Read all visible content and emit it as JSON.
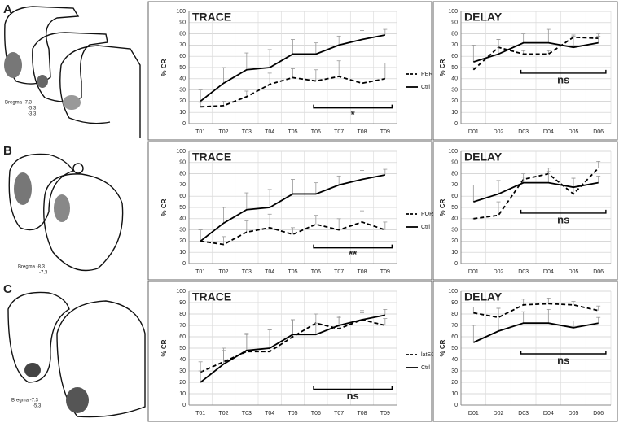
{
  "panels": [
    {
      "label": "A",
      "bregma": [
        "Bregma -7.3",
        "-5.3",
        "-3.3"
      ]
    },
    {
      "label": "B",
      "bregma": [
        "Bregma -8.3",
        "-7.3"
      ]
    },
    {
      "label": "C",
      "bregma": [
        "Bregma -7.3",
        "-5.3"
      ]
    }
  ],
  "chart_data": [
    {
      "type": "line",
      "title": "TRACE",
      "y_label": "% CR",
      "annotation": "*",
      "legend": "right",
      "grid": true,
      "categories": [
        "T01",
        "T02",
        "T03",
        "T04",
        "T05",
        "T06",
        "T07",
        "T08",
        "T09"
      ],
      "ylim": [
        0,
        100
      ],
      "yticks": [
        0,
        10,
        20,
        30,
        40,
        50,
        60,
        70,
        80,
        90,
        100
      ],
      "series": [
        {
          "name": "PER",
          "color": "#000000",
          "line_style": "dashed",
          "values": [
            15,
            16,
            24,
            35,
            41,
            38,
            42,
            36,
            40
          ],
          "errors": [
            4,
            4,
            5,
            10,
            8,
            10,
            14,
            10,
            14
          ]
        },
        {
          "name": "Ctrl",
          "color": "#000000",
          "line_style": "solid",
          "values": [
            20,
            36,
            48,
            50,
            62,
            62,
            70,
            75,
            79
          ],
          "errors": [
            10,
            14,
            15,
            16,
            13,
            10,
            8,
            8,
            5
          ]
        }
      ]
    },
    {
      "type": "line",
      "title": "DELAY",
      "y_label": "% CR",
      "annotation": "ns",
      "grid": true,
      "categories": [
        "D01",
        "D02",
        "D03",
        "D04",
        "D05",
        "D06"
      ],
      "ylim": [
        0,
        100
      ],
      "yticks": [
        0,
        10,
        20,
        30,
        40,
        50,
        60,
        70,
        80,
        90,
        100
      ],
      "series": [
        {
          "color": "#000000",
          "line_style": "dashed",
          "values": [
            48,
            68,
            62,
            62,
            77,
            76
          ],
          "errors": [
            2,
            7,
            3,
            3,
            2,
            4
          ]
        },
        {
          "color": "#000000",
          "line_style": "solid",
          "values": [
            55,
            62,
            72,
            72,
            68,
            72
          ],
          "errors": [
            15,
            13,
            8,
            12,
            10,
            6
          ]
        }
      ]
    },
    {
      "type": "line",
      "title": "TRACE",
      "y_label": "% CR",
      "annotation": "**",
      "legend": "right",
      "grid": true,
      "categories": [
        "T01",
        "T02",
        "T03",
        "T04",
        "T05",
        "T06",
        "T07",
        "T08",
        "T09"
      ],
      "ylim": [
        0,
        100
      ],
      "yticks": [
        0,
        10,
        20,
        30,
        40,
        50,
        60,
        70,
        80,
        90,
        100
      ],
      "series": [
        {
          "name": "POR",
          "color": "#000000",
          "line_style": "dashed",
          "values": [
            20,
            17,
            28,
            32,
            26,
            35,
            30,
            37,
            30
          ],
          "errors": [
            10,
            7,
            10,
            12,
            6,
            8,
            10,
            10,
            7
          ]
        },
        {
          "name": "Ctrl",
          "color": "#000000",
          "line_style": "solid",
          "values": [
            20,
            36,
            48,
            50,
            62,
            62,
            70,
            75,
            79
          ],
          "errors": [
            10,
            14,
            15,
            16,
            13,
            10,
            8,
            8,
            5
          ]
        }
      ]
    },
    {
      "type": "line",
      "title": "DELAY",
      "y_label": "% CR",
      "annotation": "ns",
      "grid": true,
      "categories": [
        "D01",
        "D02",
        "D03",
        "D04",
        "D05",
        "D06"
      ],
      "ylim": [
        0,
        100
      ],
      "yticks": [
        0,
        10,
        20,
        30,
        40,
        50,
        60,
        70,
        80,
        90,
        100
      ],
      "series": [
        {
          "color": "#000000",
          "line_style": "dashed",
          "values": [
            40,
            43,
            75,
            80,
            62,
            85
          ],
          "errors": [
            0,
            12,
            5,
            5,
            14,
            6
          ]
        },
        {
          "color": "#000000",
          "line_style": "solid",
          "values": [
            55,
            62,
            72,
            72,
            68,
            72
          ],
          "errors": [
            15,
            12,
            5,
            10,
            8,
            6
          ]
        }
      ]
    },
    {
      "type": "line",
      "title": "TRACE",
      "y_label": "% CR",
      "annotation": "ns",
      "legend": "right",
      "grid": true,
      "categories": [
        "T01",
        "T02",
        "T03",
        "T04",
        "T05",
        "T06",
        "T07",
        "T08",
        "T09"
      ],
      "ylim": [
        0,
        100
      ],
      "yticks": [
        0,
        10,
        20,
        30,
        40,
        50,
        60,
        70,
        80,
        90,
        100
      ],
      "series": [
        {
          "name": "latEC",
          "color": "#000000",
          "line_style": "dashed",
          "values": [
            29,
            38,
            47,
            47,
            60,
            72,
            67,
            75,
            70
          ],
          "errors": [
            9,
            10,
            15,
            19,
            15,
            8,
            10,
            6,
            6
          ]
        },
        {
          "name": "Ctrl",
          "color": "#000000",
          "line_style": "solid",
          "values": [
            20,
            36,
            48,
            50,
            62,
            62,
            70,
            75,
            79
          ],
          "errors": [
            10,
            14,
            15,
            16,
            13,
            10,
            8,
            8,
            5
          ]
        }
      ]
    },
    {
      "type": "line",
      "title": "DELAY",
      "y_label": "% CR",
      "annotation": "ns",
      "grid": true,
      "categories": [
        "D01",
        "D02",
        "D03",
        "D04",
        "D05",
        "D06"
      ],
      "ylim": [
        0,
        100
      ],
      "yticks": [
        0,
        10,
        20,
        30,
        40,
        50,
        60,
        70,
        80,
        90,
        100
      ],
      "series": [
        {
          "color": "#000000",
          "line_style": "dashed",
          "values": [
            81,
            77,
            88,
            89,
            88,
            83
          ],
          "errors": [
            5,
            8,
            5,
            5,
            3,
            4
          ]
        },
        {
          "color": "#000000",
          "line_style": "solid",
          "values": [
            55,
            65,
            72,
            72,
            68,
            72
          ],
          "errors": [
            15,
            20,
            10,
            12,
            6,
            5
          ]
        }
      ]
    }
  ]
}
